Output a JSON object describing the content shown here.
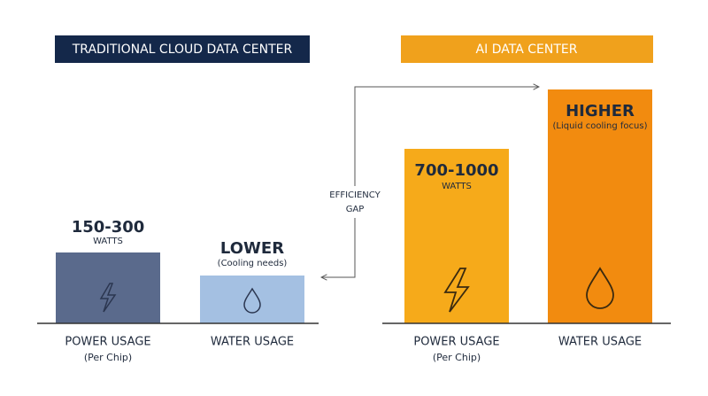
{
  "left": {
    "title": "TRADITIONAL CLOUD DATA CENTER",
    "power": {
      "value": "150-300",
      "unit": "WATTS",
      "label": "POWER USAGE",
      "sublabel": "(Per Chip)"
    },
    "water": {
      "value": "LOWER",
      "note": "(Cooling needs)",
      "label": "WATER USAGE"
    }
  },
  "right": {
    "title": "AI DATA CENTER",
    "power": {
      "value": "700-1000",
      "unit": "WATTS",
      "label": "POWER USAGE",
      "sublabel": "(Per Chip)"
    },
    "water": {
      "value": "HIGHER",
      "note": "(Liquid cooling focus)",
      "label": "WATER USAGE"
    }
  },
  "gap": {
    "line1": "EFFICIENCY",
    "line2": "GAP"
  }
}
